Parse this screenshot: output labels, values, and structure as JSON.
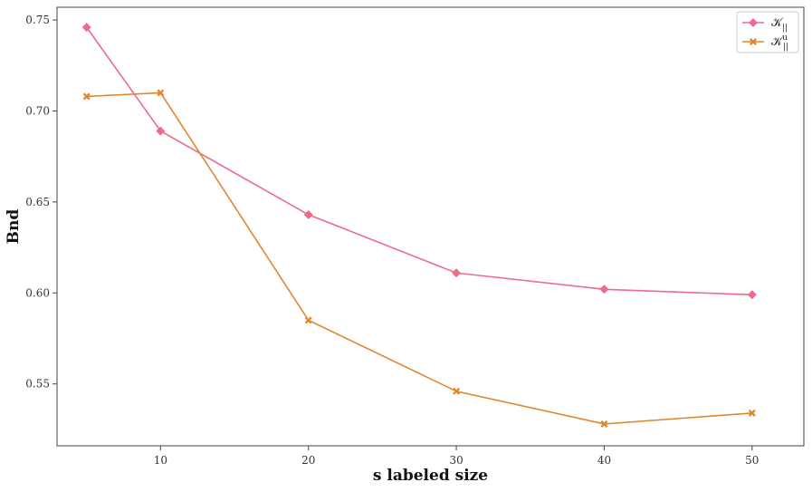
{
  "chart_data": {
    "type": "line",
    "title": "",
    "xlabel": "s labeled size",
    "ylabel": "Bnd",
    "xlim": [
      3,
      53.5
    ],
    "ylim": [
      0.516,
      0.757
    ],
    "xticks": [
      10,
      20,
      30,
      40,
      50
    ],
    "yticks": [
      0.55,
      0.6,
      0.65,
      0.7,
      0.75
    ],
    "xtick_labels": [
      "10",
      "20",
      "30",
      "40",
      "50"
    ],
    "ytick_labels": [
      "0.55",
      "0.60",
      "0.65",
      "0.70",
      "0.75"
    ],
    "grid": false,
    "legend_position": "top-right",
    "x": [
      5,
      10,
      20,
      30,
      40,
      50
    ],
    "series": [
      {
        "name": "𝒦||",
        "name_main": "𝒦",
        "name_sub": "||",
        "name_sup": "",
        "color": "#ee6b8a",
        "marker": "diamond",
        "values": [
          0.746,
          0.689,
          0.643,
          0.611,
          0.602,
          0.599
        ]
      },
      {
        "name": "𝒦u||",
        "name_main": "𝒦",
        "name_sub": "||",
        "name_sup": "u",
        "color": "#e0862f",
        "marker": "x",
        "values": [
          0.708,
          0.71,
          0.585,
          0.546,
          0.528,
          0.534
        ]
      }
    ]
  }
}
